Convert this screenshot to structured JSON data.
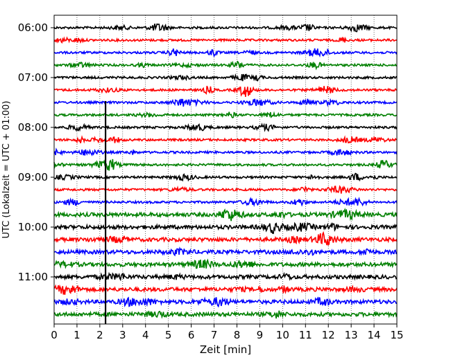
{
  "chart_data": {
    "type": "line",
    "title": "",
    "xlabel": "Zeit  [min]",
    "ylabel": "UTC (Lokalzeit = UTC + 01:00)",
    "xlim": [
      0,
      15
    ],
    "x_ticks": [
      "0",
      "1",
      "2",
      "3",
      "4",
      "5",
      "6",
      "7",
      "8",
      "9",
      "10",
      "11",
      "12",
      "13",
      "14",
      "15"
    ],
    "y_ticks": [
      "06:00",
      "07:00",
      "08:00",
      "09:00",
      "10:00",
      "11:00"
    ],
    "grid": "vertical-dotted",
    "colors": [
      "#000000",
      "#ff0000",
      "#0000ff",
      "#008000"
    ],
    "traces": [
      {
        "start": "06:00",
        "color": "#000000"
      },
      {
        "start": "06:15",
        "color": "#ff0000"
      },
      {
        "start": "06:30",
        "color": "#0000ff"
      },
      {
        "start": "06:45",
        "color": "#008000"
      },
      {
        "start": "07:00",
        "color": "#000000"
      },
      {
        "start": "07:15",
        "color": "#ff0000"
      },
      {
        "start": "07:30",
        "color": "#0000ff"
      },
      {
        "start": "07:45",
        "color": "#008000"
      },
      {
        "start": "08:00",
        "color": "#000000"
      },
      {
        "start": "08:15",
        "color": "#ff0000"
      },
      {
        "start": "08:30",
        "color": "#0000ff"
      },
      {
        "start": "08:45",
        "color": "#008000"
      },
      {
        "start": "09:00",
        "color": "#000000"
      },
      {
        "start": "09:15",
        "color": "#ff0000"
      },
      {
        "start": "09:30",
        "color": "#0000ff"
      },
      {
        "start": "09:45",
        "color": "#008000"
      },
      {
        "start": "10:00",
        "color": "#000000"
      },
      {
        "start": "10:15",
        "color": "#ff0000"
      },
      {
        "start": "10:30",
        "color": "#0000ff"
      },
      {
        "start": "10:45",
        "color": "#008000"
      },
      {
        "start": "11:00",
        "color": "#000000"
      },
      {
        "start": "11:15",
        "color": "#ff0000"
      },
      {
        "start": "11:30",
        "color": "#0000ff"
      },
      {
        "start": "11:45",
        "color": "#008000"
      }
    ],
    "event_marker": {
      "x": 2.25,
      "from": "07:30",
      "to": "11:45",
      "color": "#000000"
    }
  }
}
